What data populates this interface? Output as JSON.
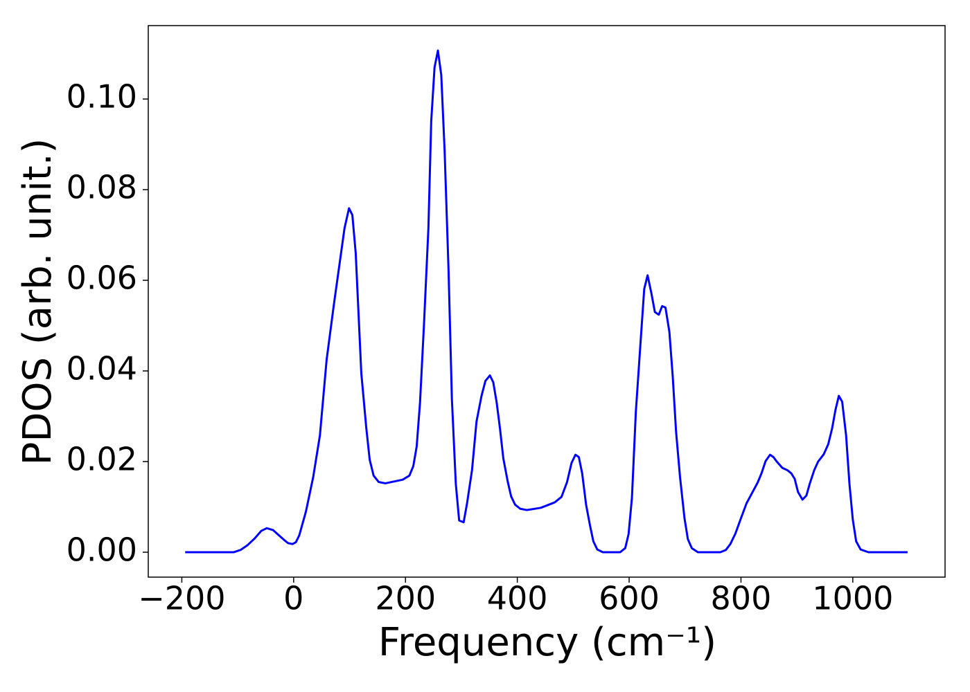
{
  "chart_data": {
    "type": "line",
    "xlabel": "Frequency (cm⁻¹)",
    "ylabel": "PDOS (arb. unit.)",
    "xlim": [
      -260,
      1165
    ],
    "ylim": [
      -0.0055,
      0.1162
    ],
    "xticks": [
      {
        "value": -200,
        "label": "−200"
      },
      0,
      200,
      400,
      600,
      800,
      1000
    ],
    "yticks": [
      {
        "value": 0,
        "label": "0.00"
      },
      {
        "value": 0.02,
        "label": "0.02"
      },
      {
        "value": 0.04,
        "label": "0.04"
      },
      {
        "value": 0.06,
        "label": "0.06"
      },
      {
        "value": 0.08,
        "label": "0.08"
      },
      {
        "value": 0.1,
        "label": "0.10"
      }
    ],
    "grid": false,
    "series": [
      {
        "color": "#0000ff",
        "x": [
          -194,
          -107,
          -95,
          -83,
          -70,
          -58,
          -48,
          -37,
          -27,
          -17,
          -10,
          -2,
          4,
          10,
          22,
          35,
          47,
          59,
          72,
          91,
          99,
          105,
          111,
          121,
          130,
          136,
          143,
          152,
          164,
          195,
          207,
          214,
          220,
          226,
          233,
          241,
          246,
          252,
          258,
          264,
          270,
          277,
          283,
          290,
          296,
          304,
          310,
          319,
          327,
          336,
          343,
          351,
          357,
          363,
          369,
          375,
          383,
          389,
          396,
          405,
          417,
          442,
          467,
          479,
          489,
          497,
          504,
          510,
          516,
          523,
          530,
          536,
          543,
          553,
          584,
          593,
          599,
          605,
          612,
          620,
          627,
          633,
          640,
          646,
          653,
          659,
          665,
          672,
          678,
          684,
          691,
          699,
          705,
          712,
          723,
          763,
          773,
          781,
          790,
          800,
          810,
          820,
          830,
          837,
          844,
          852,
          858,
          864,
          874,
          883,
          890,
          896,
          902,
          910,
          917,
          923,
          931,
          938,
          948,
          956,
          963,
          969,
          975,
          981,
          988,
          994,
          1000,
          1006,
          1014,
          1028,
          1098
        ],
        "values": [
          0,
          0,
          0.0005,
          0.0015,
          0.003,
          0.0047,
          0.0053,
          0.0049,
          0.0038,
          0.0027,
          0.002,
          0.0018,
          0.0022,
          0.0037,
          0.009,
          0.0166,
          0.0258,
          0.0425,
          0.0547,
          0.0715,
          0.0759,
          0.0744,
          0.066,
          0.0395,
          0.0273,
          0.0204,
          0.0169,
          0.0155,
          0.0152,
          0.016,
          0.0169,
          0.019,
          0.0233,
          0.033,
          0.05,
          0.0715,
          0.095,
          0.107,
          0.1107,
          0.1053,
          0.0886,
          0.0623,
          0.0338,
          0.0151,
          0.007,
          0.0066,
          0.0107,
          0.0181,
          0.0288,
          0.0345,
          0.0378,
          0.039,
          0.0375,
          0.0331,
          0.0273,
          0.0207,
          0.0155,
          0.0123,
          0.0105,
          0.0096,
          0.0093,
          0.0098,
          0.011,
          0.0122,
          0.0155,
          0.0197,
          0.0215,
          0.021,
          0.0174,
          0.0105,
          0.0059,
          0.0024,
          0.0006,
          0,
          0,
          0.0009,
          0.004,
          0.012,
          0.031,
          0.0456,
          0.0581,
          0.0611,
          0.057,
          0.053,
          0.0524,
          0.0543,
          0.054,
          0.0486,
          0.0387,
          0.0265,
          0.0166,
          0.0075,
          0.0029,
          0.0009,
          0,
          0,
          0.0005,
          0.0018,
          0.0041,
          0.0075,
          0.0108,
          0.0131,
          0.0154,
          0.0175,
          0.0201,
          0.0215,
          0.021,
          0.02,
          0.0186,
          0.0181,
          0.0174,
          0.0162,
          0.0133,
          0.0116,
          0.0125,
          0.0151,
          0.0181,
          0.02,
          0.0216,
          0.0238,
          0.0273,
          0.0314,
          0.0345,
          0.0332,
          0.0258,
          0.0151,
          0.0072,
          0.0024,
          0.0006,
          0,
          0
        ]
      }
    ]
  }
}
